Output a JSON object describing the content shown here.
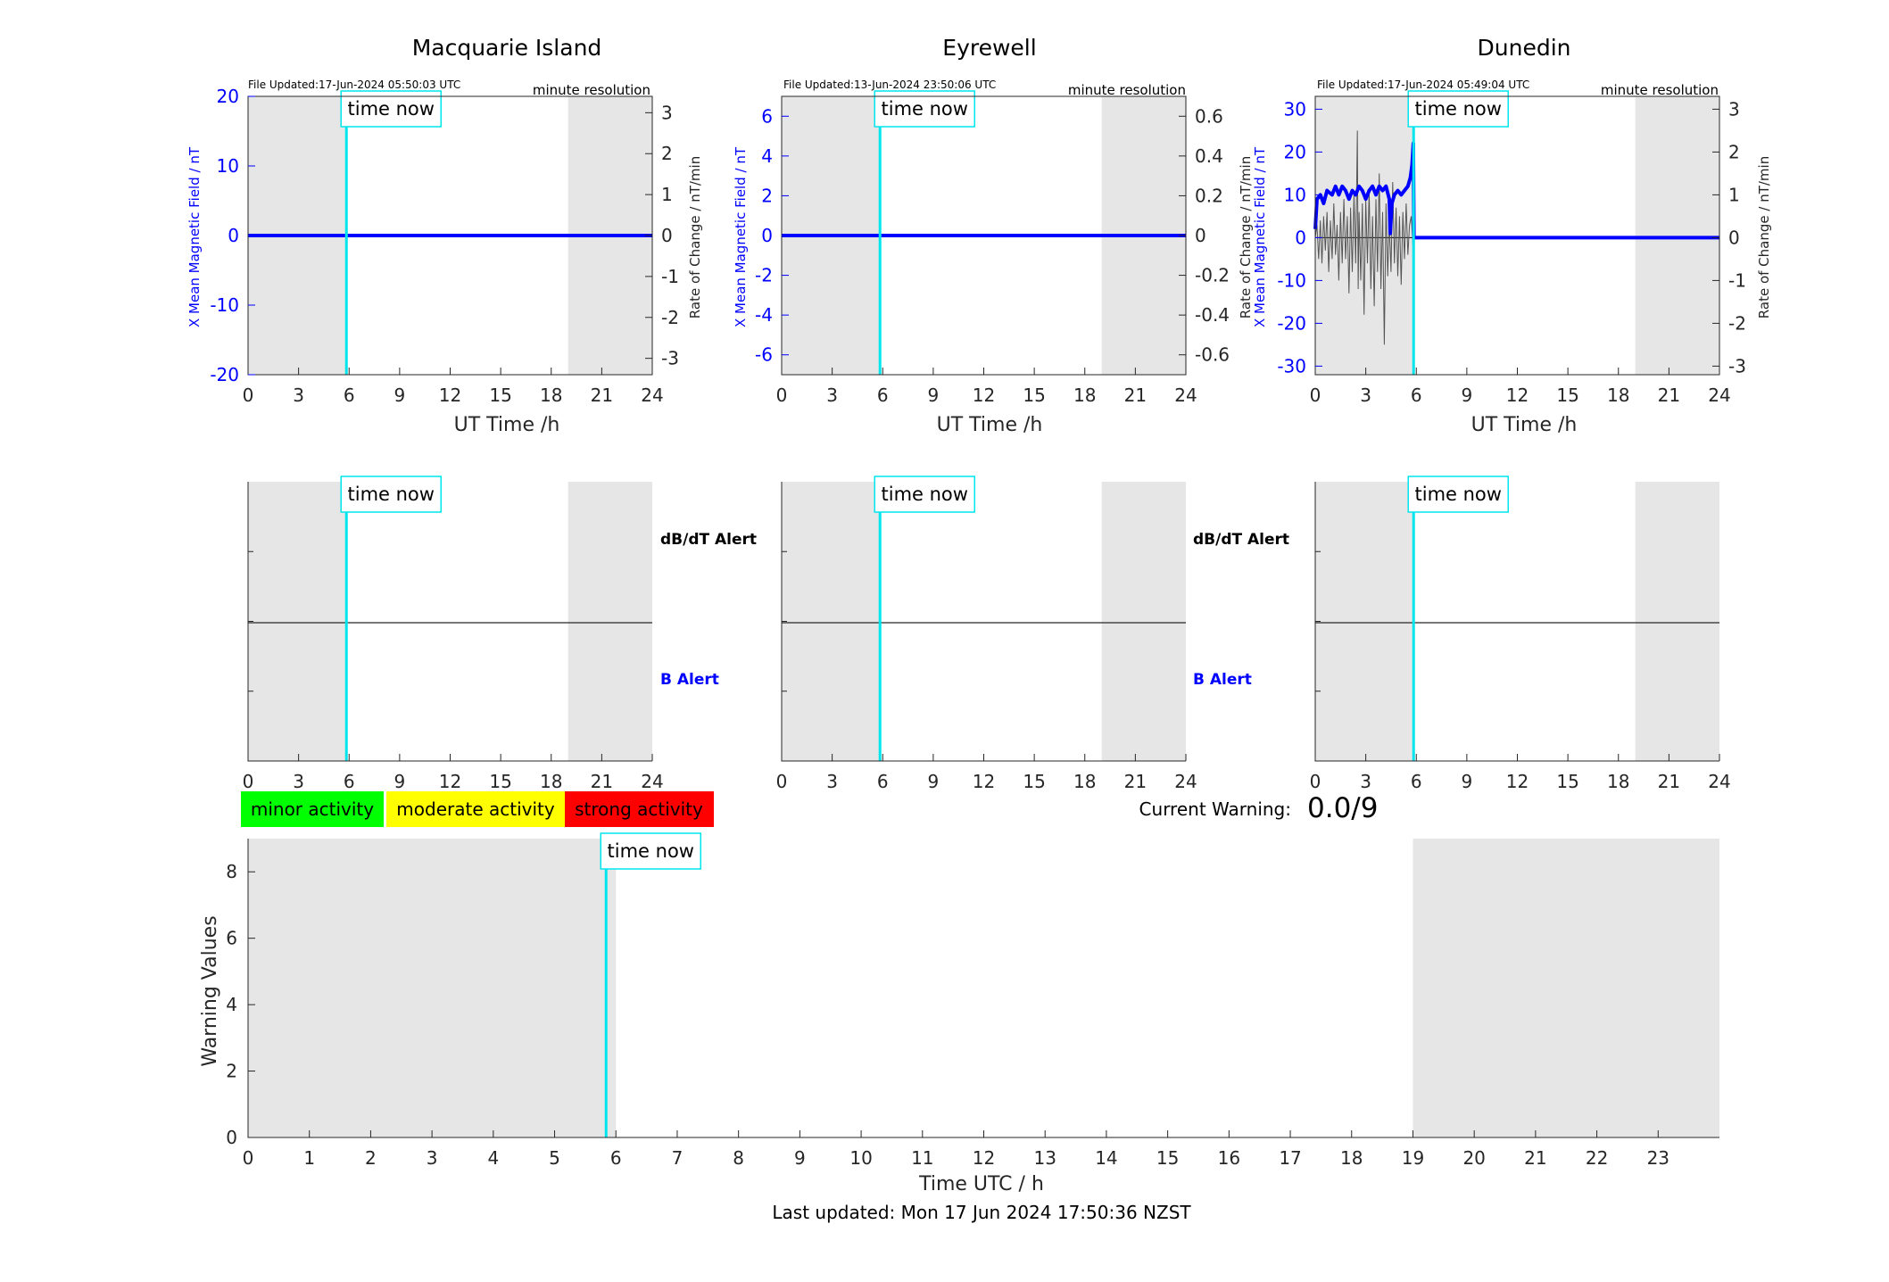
{
  "colors": {
    "night_shade": "#e6e6e6",
    "time_now_line": "#00e5ee",
    "b_series": "#0000ff",
    "rate_series": "#555555",
    "minor": "#00ff00",
    "moderate": "#ffff00",
    "strong": "#ff0000"
  },
  "chart_data": [
    {
      "type": "line",
      "panel": "magnetometer",
      "title": "Macquarie Island",
      "file_updated": "File Updated:17-Jun-2024 05:50:03 UTC",
      "resolution": "minute resolution",
      "xlabel": "UT Time /h",
      "ylabel_left": "X Mean Magnetic Field / nT",
      "ylabel_right": "Rate of Change / nT/min",
      "xlim": [
        0,
        24
      ],
      "x_ticks": [
        "0",
        "3",
        "6",
        "9",
        "12",
        "15",
        "18",
        "21",
        "24"
      ],
      "ylim_left": [
        -20,
        20
      ],
      "yticks_left": [
        "20",
        "10",
        "0",
        "-10",
        "-20"
      ],
      "ylim_right": [
        -3.4,
        3.4
      ],
      "yticks_right": [
        "3",
        "2",
        "1",
        "0",
        "-1",
        "-2",
        "-3"
      ],
      "time_now": 5.84,
      "time_now_label": "time now",
      "shaded_hours": [
        [
          0,
          5.84
        ],
        [
          19,
          24
        ]
      ],
      "series": [
        {
          "values": [
            [
              0,
              0
            ],
            [
              24,
              0
            ]
          ]
        }
      ]
    },
    {
      "type": "line",
      "panel": "magnetometer",
      "title": "Eyrewell",
      "file_updated": "File Updated:13-Jun-2024 23:50:06 UTC",
      "resolution": "minute resolution",
      "xlabel": "UT Time /h",
      "ylabel_left": "X Mean Magnetic Field / nT",
      "ylabel_right": "",
      "xlim": [
        0,
        24
      ],
      "x_ticks": [
        "0",
        "3",
        "6",
        "9",
        "12",
        "15",
        "18",
        "21",
        "24"
      ],
      "ylim_left": [
        -7,
        7
      ],
      "yticks_left": [
        "6",
        "4",
        "2",
        "0",
        "-2",
        "-4",
        "-6"
      ],
      "ylim_right": [
        -0.7,
        0.7
      ],
      "yticks_right": [
        "0.6",
        "0.4",
        "0.2",
        "0",
        "-0.2",
        "-0.4",
        "-0.6"
      ],
      "time_now": 5.84,
      "time_now_label": "time now",
      "shaded_hours": [
        [
          0,
          5.84
        ],
        [
          19,
          24
        ]
      ],
      "series": [
        {
          "values": [
            [
              0,
              0
            ],
            [
              24,
              0
            ]
          ]
        }
      ]
    },
    {
      "type": "line",
      "panel": "magnetometer",
      "title": "Dunedin",
      "file_updated": "File Updated:17-Jun-2024 05:49:04 UTC",
      "resolution": "minute resolution",
      "xlabel": "UT Time /h",
      "ylabel_left": "X Mean Magnetic Field / nT",
      "ylabel_left_overlap": "Rate of Change / nT/min",
      "ylabel_right": "Rate of Change / nT/min",
      "xlim": [
        0,
        24
      ],
      "x_ticks": [
        "0",
        "3",
        "6",
        "9",
        "12",
        "15",
        "18",
        "21",
        "24"
      ],
      "ylim_left": [
        -32,
        33
      ],
      "yticks_left": [
        "30",
        "20",
        "10",
        "0",
        "-10",
        "-20",
        "-30"
      ],
      "ylim_right": [
        -3.2,
        3.3
      ],
      "yticks_right": [
        "3",
        "2",
        "1",
        "0",
        "-1",
        "-2",
        "-3"
      ],
      "time_now": 5.84,
      "time_now_label": "time now",
      "shaded_hours": [
        [
          0,
          5.84
        ],
        [
          19,
          24
        ]
      ],
      "series": [
        {
          "values": [
            [
              0,
              2
            ],
            [
              0.1,
              9
            ],
            [
              0.3,
              10
            ],
            [
              0.5,
              8
            ],
            [
              0.7,
              11
            ],
            [
              1.0,
              10
            ],
            [
              1.2,
              12
            ],
            [
              1.4,
              10
            ],
            [
              1.6,
              12
            ],
            [
              1.8,
              11
            ],
            [
              2.0,
              9
            ],
            [
              2.2,
              11
            ],
            [
              2.4,
              10
            ],
            [
              2.6,
              12
            ],
            [
              2.8,
              11
            ],
            [
              3.0,
              9
            ],
            [
              3.2,
              11
            ],
            [
              3.4,
              12
            ],
            [
              3.6,
              10
            ],
            [
              3.8,
              12
            ],
            [
              4.0,
              11
            ],
            [
              4.2,
              12
            ],
            [
              4.4,
              9
            ],
            [
              4.45,
              1
            ],
            [
              4.55,
              8
            ],
            [
              4.7,
              10
            ],
            [
              4.9,
              11
            ],
            [
              5.1,
              10
            ],
            [
              5.3,
              11
            ],
            [
              5.5,
              12
            ],
            [
              5.65,
              14
            ],
            [
              5.75,
              17
            ],
            [
              5.82,
              22
            ],
            [
              5.86,
              0
            ],
            [
              24,
              0
            ]
          ]
        },
        {
          "values": [
            [
              0,
              0
            ],
            [
              0.1,
              0.3
            ],
            [
              0.2,
              -0.5
            ],
            [
              0.3,
              0.4
            ],
            [
              0.4,
              -0.6
            ],
            [
              0.5,
              0.5
            ],
            [
              0.6,
              -0.3
            ],
            [
              0.7,
              0.6
            ],
            [
              0.8,
              -0.8
            ],
            [
              0.9,
              0.4
            ],
            [
              1.0,
              -0.5
            ],
            [
              1.1,
              0.8
            ],
            [
              1.2,
              -0.4
            ],
            [
              1.3,
              0.3
            ],
            [
              1.4,
              -1.0
            ],
            [
              1.5,
              0.6
            ],
            [
              1.6,
              -0.6
            ],
            [
              1.7,
              0.9
            ],
            [
              1.8,
              -0.5
            ],
            [
              1.9,
              0.5
            ],
            [
              2.0,
              -1.3
            ],
            [
              2.1,
              0.7
            ],
            [
              2.2,
              -0.8
            ],
            [
              2.3,
              1.0
            ],
            [
              2.4,
              -0.6
            ],
            [
              2.5,
              2.5
            ],
            [
              2.55,
              -1.2
            ],
            [
              2.6,
              0.6
            ],
            [
              2.7,
              -1.0
            ],
            [
              2.8,
              0.8
            ],
            [
              2.9,
              -1.8
            ],
            [
              3.0,
              0.9
            ],
            [
              3.1,
              -0.6
            ],
            [
              3.2,
              1.1
            ],
            [
              3.3,
              -1.2
            ],
            [
              3.4,
              0.5
            ],
            [
              3.5,
              -1.6
            ],
            [
              3.6,
              0.9
            ],
            [
              3.7,
              -0.8
            ],
            [
              3.8,
              1.5
            ],
            [
              3.9,
              -1.2
            ],
            [
              4.0,
              0.6
            ],
            [
              4.1,
              -2.5
            ],
            [
              4.2,
              0.8
            ],
            [
              4.3,
              -0.9
            ],
            [
              4.4,
              0.4
            ],
            [
              4.5,
              -0.8
            ],
            [
              4.6,
              1.3
            ],
            [
              4.7,
              -0.6
            ],
            [
              4.8,
              0.7
            ],
            [
              4.9,
              -0.9
            ],
            [
              5.0,
              0.5
            ],
            [
              5.1,
              -1.1
            ],
            [
              5.2,
              0.6
            ],
            [
              5.3,
              -0.5
            ],
            [
              5.4,
              0.8
            ],
            [
              5.5,
              -0.4
            ],
            [
              5.6,
              0.3
            ],
            [
              5.7,
              0.5
            ],
            [
              5.8,
              -0.2
            ],
            [
              5.84,
              0
            ]
          ]
        }
      ]
    },
    {
      "type": "line",
      "panel": "alert",
      "title": "",
      "label_upper": "dB/dT Alert",
      "label_lower": "B Alert",
      "xlim": [
        0,
        24
      ],
      "x_ticks": [
        "0",
        "3",
        "6",
        "9",
        "12",
        "15",
        "18",
        "21",
        "24"
      ],
      "time_now": 5.84,
      "time_now_label": "time now",
      "shaded_hours": [
        [
          0,
          5.84
        ],
        [
          19,
          24
        ]
      ]
    },
    {
      "type": "line",
      "panel": "alert",
      "title": "",
      "label_upper": "dB/dT Alert",
      "label_lower": "B Alert",
      "xlim": [
        0,
        24
      ],
      "x_ticks": [
        "0",
        "3",
        "6",
        "9",
        "12",
        "15",
        "18",
        "21",
        "24"
      ],
      "time_now": 5.84,
      "time_now_label": "time now",
      "shaded_hours": [
        [
          0,
          5.84
        ],
        [
          19,
          24
        ]
      ]
    },
    {
      "type": "line",
      "panel": "alert",
      "title": "",
      "label_upper": "",
      "label_lower": "",
      "xlim": [
        0,
        24
      ],
      "x_ticks": [
        "0",
        "3",
        "6",
        "9",
        "12",
        "15",
        "18",
        "21",
        "24"
      ],
      "time_now": 5.84,
      "time_now_label": "time now",
      "shaded_hours": [
        [
          0,
          5.84
        ],
        [
          19,
          24
        ]
      ]
    },
    {
      "type": "bar",
      "panel": "warning",
      "title": "",
      "xlabel": "Time UTC / h",
      "ylabel": "Warning Values",
      "xlim": [
        0,
        24
      ],
      "x_ticks": [
        "0",
        "1",
        "2",
        "3",
        "4",
        "5",
        "6",
        "7",
        "8",
        "9",
        "10",
        "11",
        "12",
        "13",
        "14",
        "15",
        "16",
        "17",
        "18",
        "19",
        "20",
        "21",
        "22",
        "23"
      ],
      "ylim": [
        0,
        9
      ],
      "y_ticks": [
        "0",
        "2",
        "4",
        "6",
        "8"
      ],
      "time_now": 5.84,
      "time_now_label": "time now",
      "shaded_hours": [
        [
          0,
          6
        ],
        [
          19,
          24
        ]
      ],
      "values": []
    }
  ],
  "legend": {
    "minor": "minor activity",
    "moderate": "moderate activity",
    "strong": "strong activity"
  },
  "warning": {
    "label": "Current Warning:",
    "value": "0.0/9"
  },
  "footer": {
    "last_updated": "Last updated: Mon 17 Jun 2024 17:50:36 NZST"
  }
}
